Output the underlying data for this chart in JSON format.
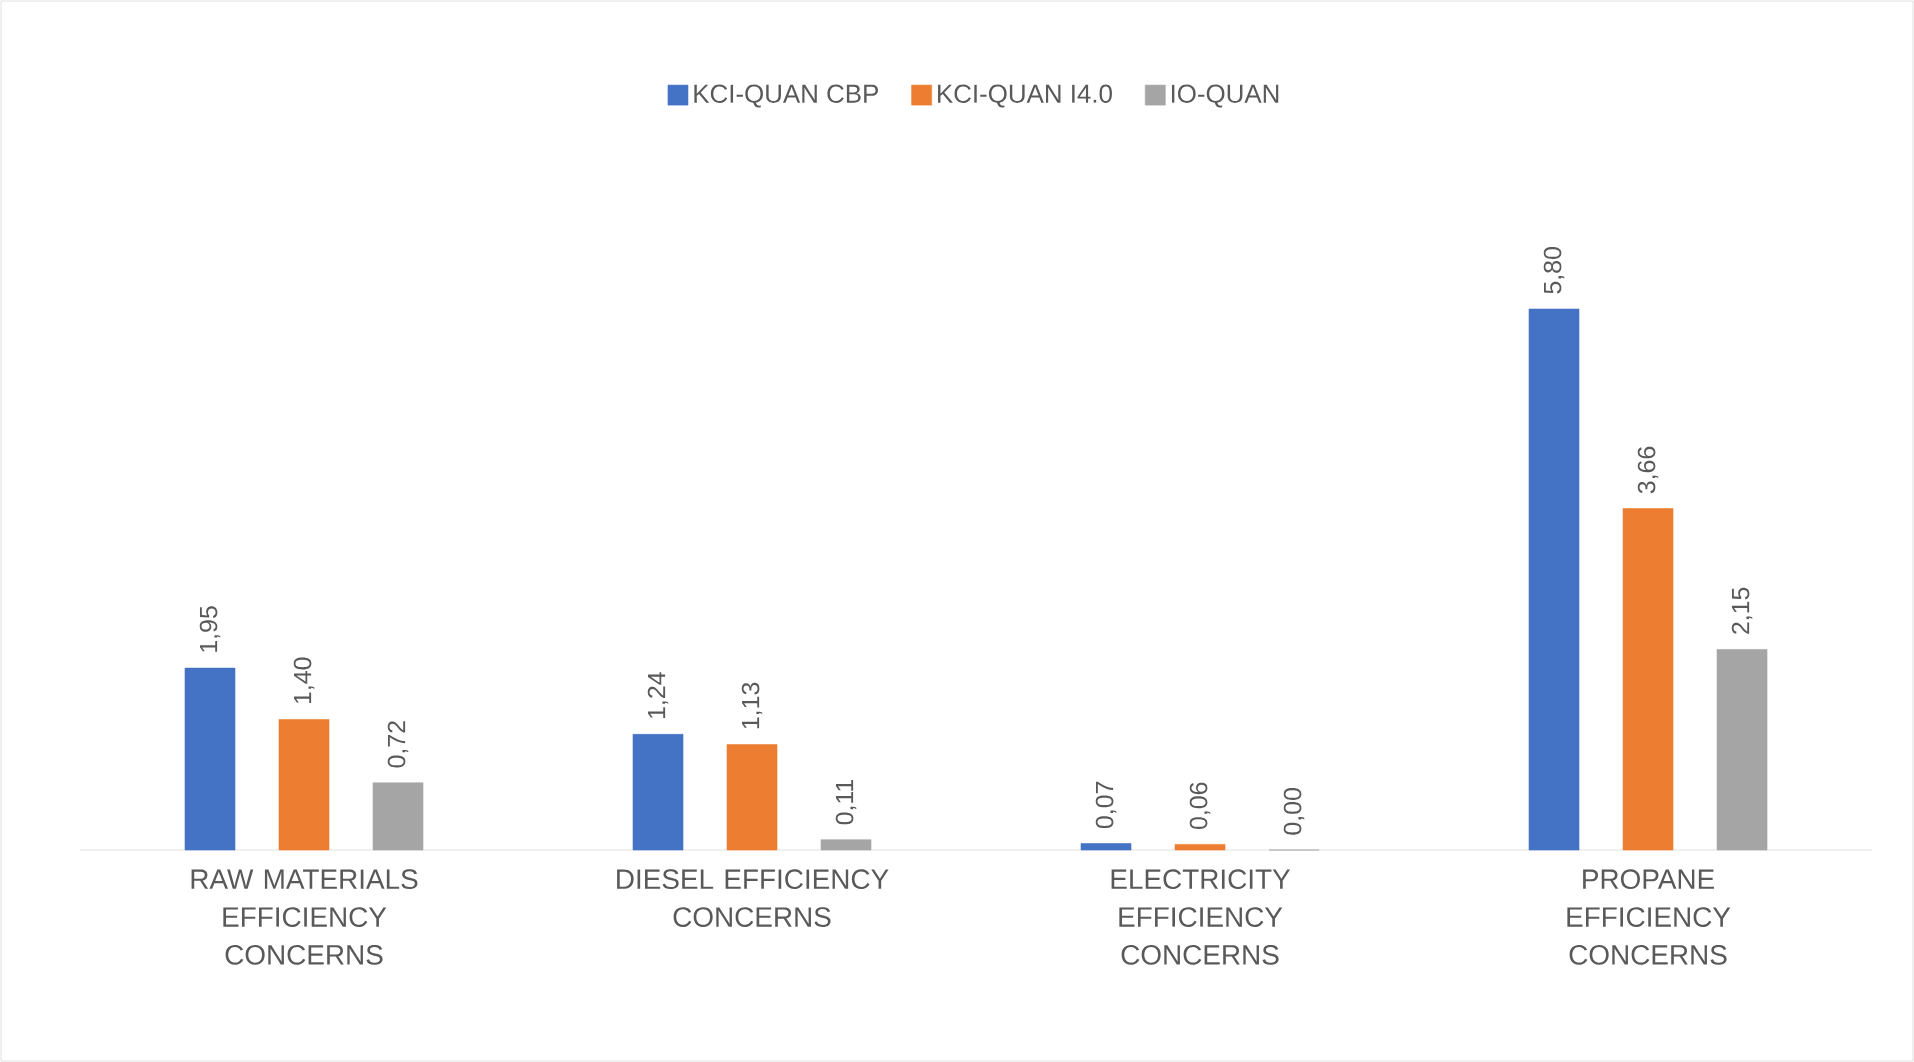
{
  "chart_data": {
    "type": "bar",
    "categories": [
      "RAW MATERIALS EFFICIENCY CONCERNS",
      "DIESEL EFFICIENCY CONCERNS",
      "ELECTRICITY EFFICIENCY CONCERNS",
      "PROPANE EFFICIENCY CONCERNS"
    ],
    "series": [
      {
        "name": "KCI-QUAN CBP",
        "color": "#4472c4",
        "values": [
          1.95,
          1.24,
          0.07,
          5.8
        ],
        "value_labels": [
          "1,95",
          "1,24",
          "0,07",
          "5,80"
        ]
      },
      {
        "name": "KCI-QUAN I4.0",
        "color": "#ed7d31",
        "values": [
          1.4,
          1.13,
          0.06,
          3.66
        ],
        "value_labels": [
          "1,40",
          "1,13",
          "0,06",
          "3,66"
        ]
      },
      {
        "name": "IO-QUAN",
        "color": "#a5a5a5",
        "values": [
          0.72,
          0.11,
          0.0,
          2.15
        ],
        "value_labels": [
          "0,72",
          "0,11",
          "0,00",
          "2,15"
        ]
      }
    ],
    "legend": "top"
  }
}
